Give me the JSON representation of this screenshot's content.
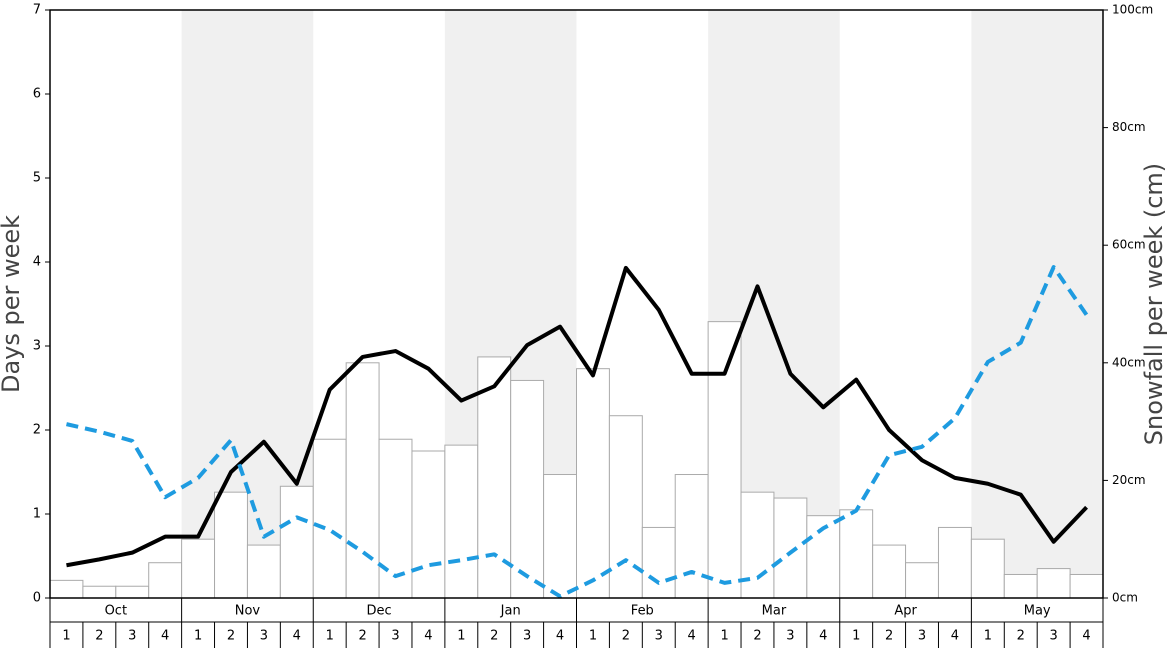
{
  "chart_data": {
    "type": "bar_line",
    "y_label": "Days per week",
    "y2_label": "Snowfall per week (cm)",
    "months": [
      "Oct",
      "Nov",
      "Dec",
      "Jan",
      "Feb",
      "Mar",
      "Apr",
      "May"
    ],
    "categories": [
      "1",
      "2",
      "3",
      "4",
      "1",
      "2",
      "3",
      "4",
      "1",
      "2",
      "3",
      "4",
      "1",
      "2",
      "3",
      "4",
      "1",
      "2",
      "3",
      "4",
      "1",
      "2",
      "3",
      "4",
      "1",
      "2",
      "3",
      "4",
      "1",
      "2",
      "3",
      "4"
    ],
    "ylim": [
      0,
      7
    ],
    "yticks": [
      0,
      1,
      2,
      3,
      4,
      5,
      6,
      7
    ],
    "y2lim": [
      0,
      100
    ],
    "y2ticks": [
      {
        "value": 0,
        "label": "0cm"
      },
      {
        "value": 20,
        "label": "20cm"
      },
      {
        "value": 40,
        "label": "40cm"
      },
      {
        "value": 60,
        "label": "60cm"
      },
      {
        "value": 80,
        "label": "80cm"
      },
      {
        "value": 100,
        "label": "100cm"
      }
    ],
    "series": [
      {
        "kind": "bar",
        "axis": "y2",
        "color": "#ffffff",
        "edge": "#aaaaaa",
        "values": [
          3,
          2,
          2,
          6,
          10,
          18,
          9,
          19,
          27,
          40,
          27,
          25,
          26,
          41,
          37,
          21,
          39,
          31,
          12,
          21,
          47,
          18,
          17,
          14,
          15,
          9,
          6,
          12,
          10,
          4,
          5,
          4
        ]
      },
      {
        "kind": "line",
        "color": "#000000",
        "dash": false,
        "values": [
          0.39,
          0.46,
          0.54,
          0.73,
          0.73,
          1.5,
          1.86,
          1.36,
          2.48,
          2.87,
          2.94,
          2.73,
          2.35,
          2.52,
          3.01,
          3.23,
          2.65,
          3.93,
          3.43,
          2.67,
          2.67,
          3.71,
          2.67,
          2.27,
          2.6,
          2.0,
          1.64,
          1.43,
          1.36,
          1.23,
          0.67,
          1.08
        ]
      },
      {
        "kind": "line",
        "color": "#1e9be0",
        "dash": true,
        "values": [
          2.07,
          1.98,
          1.87,
          1.2,
          1.43,
          1.88,
          0.73,
          0.96,
          0.81,
          0.55,
          0.26,
          0.39,
          0.45,
          0.52,
          0.26,
          0.02,
          0.21,
          0.45,
          0.18,
          0.31,
          0.18,
          0.24,
          0.54,
          0.83,
          1.04,
          1.7,
          1.8,
          2.14,
          2.81,
          3.04,
          3.94,
          3.37
        ]
      }
    ]
  }
}
